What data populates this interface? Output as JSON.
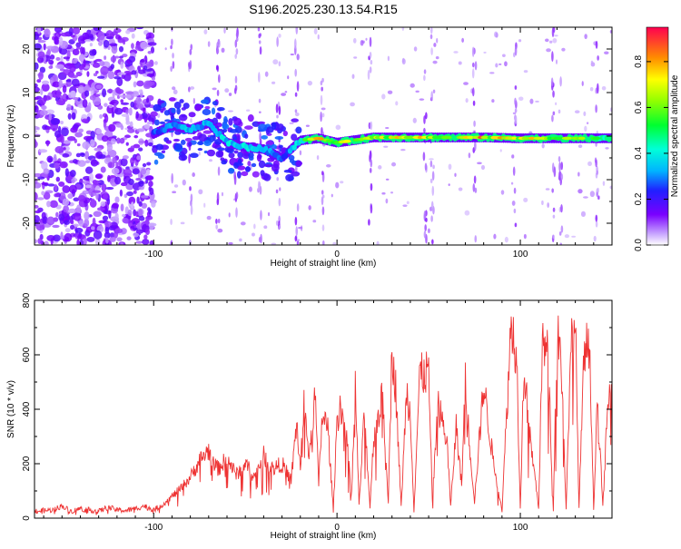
{
  "title": "S196.2025.230.13.54.R15",
  "chart_data": [
    {
      "type": "heatmap",
      "xlabel": "Height of straight line (km)",
      "ylabel": "Frequency (Hz)",
      "xlim": [
        -165,
        150
      ],
      "ylim": [
        -25,
        25
      ],
      "xticks": [
        -100,
        0,
        100
      ],
      "yticks": [
        -20,
        -10,
        0,
        10,
        20
      ],
      "colorbar": {
        "label": "Normalized spectral amplitude",
        "range": [
          0,
          0.95
        ],
        "ticks": [
          0.0,
          0.2,
          0.4,
          0.6,
          0.8
        ]
      },
      "ridge": [
        {
          "x": -100,
          "y": 0.5,
          "amp": 0.3
        },
        {
          "x": -90,
          "y": 2.5,
          "amp": 0.35
        },
        {
          "x": -80,
          "y": 1.5,
          "amp": 0.4
        },
        {
          "x": -70,
          "y": 3.0,
          "amp": 0.38
        },
        {
          "x": -60,
          "y": -1.5,
          "amp": 0.42
        },
        {
          "x": -50,
          "y": -2.5,
          "amp": 0.45
        },
        {
          "x": -40,
          "y": -3.0,
          "amp": 0.4
        },
        {
          "x": -30,
          "y": -5.0,
          "amp": 0.3
        },
        {
          "x": -20,
          "y": -1.0,
          "amp": 0.45
        },
        {
          "x": -10,
          "y": -0.5,
          "amp": 0.9
        },
        {
          "x": 0,
          "y": -1.5,
          "amp": 0.7
        },
        {
          "x": 20,
          "y": -0.3,
          "amp": 0.8
        },
        {
          "x": 40,
          "y": -0.3,
          "amp": 0.9
        },
        {
          "x": 60,
          "y": -0.3,
          "amp": 0.6
        },
        {
          "x": 80,
          "y": -0.3,
          "amp": 0.9
        },
        {
          "x": 100,
          "y": -0.5,
          "amp": 0.75
        },
        {
          "x": 115,
          "y": -0.5,
          "amp": 0.85
        },
        {
          "x": 130,
          "y": -0.5,
          "amp": 0.7
        },
        {
          "x": 145,
          "y": -0.5,
          "amp": 0.55
        }
      ]
    },
    {
      "type": "line",
      "xlabel": "Height of straight line (km)",
      "ylabel": "SNR (10 * v/v)",
      "xlim": [
        -165,
        150
      ],
      "ylim": [
        0,
        800
      ],
      "xticks": [
        -100,
        0,
        100
      ],
      "yticks": [
        0,
        200,
        400,
        600,
        800
      ],
      "color": "#ee3333",
      "series": [
        {
          "name": "SNR",
          "x": [
            -165,
            -155,
            -150,
            -145,
            -140,
            -135,
            -130,
            -125,
            -120,
            -115,
            -110,
            -105,
            -100,
            -95,
            -90,
            -85,
            -80,
            -75,
            -70,
            -65,
            -60,
            -55,
            -50,
            -45,
            -40,
            -35,
            -30,
            -25,
            -22,
            -20,
            -18,
            -15,
            -12,
            -10,
            -8,
            -5,
            -2,
            0,
            2,
            5,
            8,
            10,
            12,
            15,
            18,
            20,
            25,
            28,
            30,
            32,
            35,
            38,
            40,
            42,
            45,
            50,
            52,
            55,
            60,
            62,
            65,
            68,
            70,
            72,
            75,
            80,
            85,
            90,
            95,
            98,
            100,
            102,
            105,
            110,
            112,
            115,
            118,
            120,
            122,
            125,
            128,
            130,
            132,
            135,
            138,
            140,
            142,
            145,
            148,
            150
          ],
          "values": [
            25,
            30,
            45,
            25,
            35,
            30,
            25,
            40,
            30,
            28,
            35,
            45,
            30,
            50,
            80,
            110,
            150,
            210,
            250,
            180,
            220,
            160,
            200,
            150,
            230,
            180,
            200,
            140,
            350,
            180,
            420,
            220,
            460,
            120,
            380,
            330,
            30,
            360,
            420,
            300,
            90,
            480,
            50,
            380,
            40,
            300,
            450,
            60,
            620,
            480,
            40,
            470,
            380,
            30,
            520,
            540,
            60,
            420,
            280,
            40,
            340,
            120,
            520,
            300,
            60,
            490,
            220,
            30,
            720,
            600,
            40,
            560,
            310,
            40,
            640,
            600,
            30,
            700,
            620,
            40,
            680,
            720,
            40,
            640,
            600,
            30,
            450,
            40,
            450,
            420
          ]
        }
      ]
    }
  ]
}
